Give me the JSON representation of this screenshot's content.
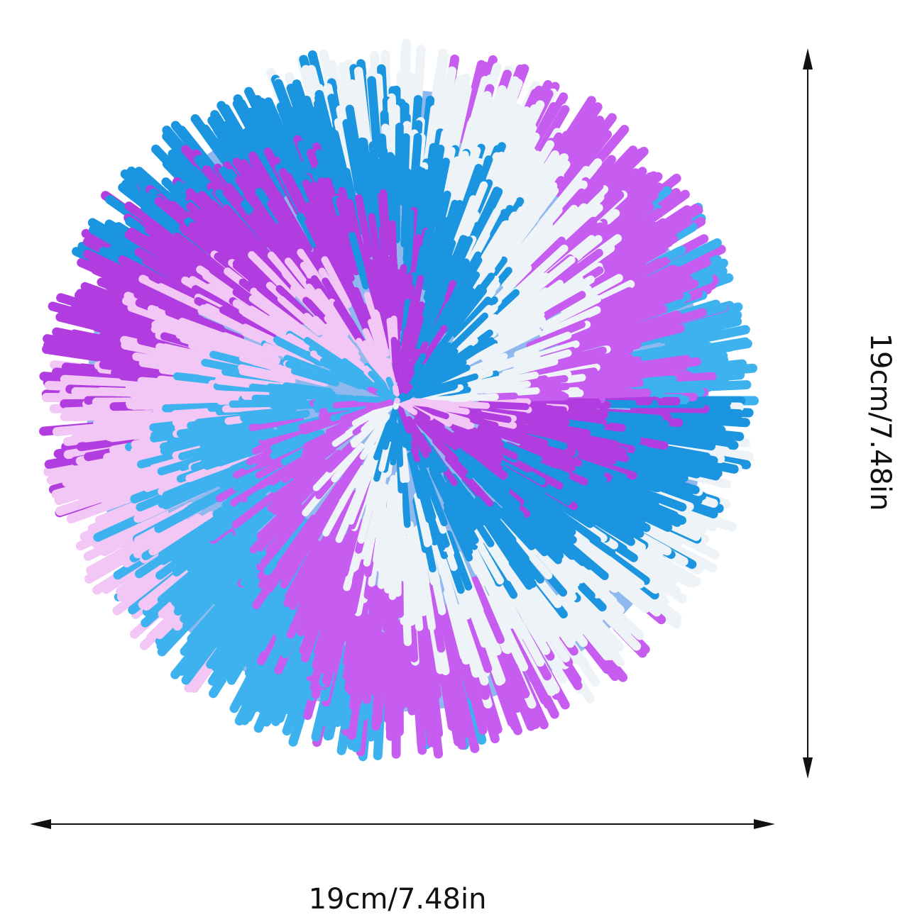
{
  "product": {
    "colors": [
      "#b13de0",
      "#c65cf0",
      "#1b95e0",
      "#3db2ef",
      "#eef3f8",
      "#f2c6f5"
    ]
  },
  "dimensions": {
    "width_label": "19cm/7.48in",
    "height_label": "19cm/7.48in"
  }
}
